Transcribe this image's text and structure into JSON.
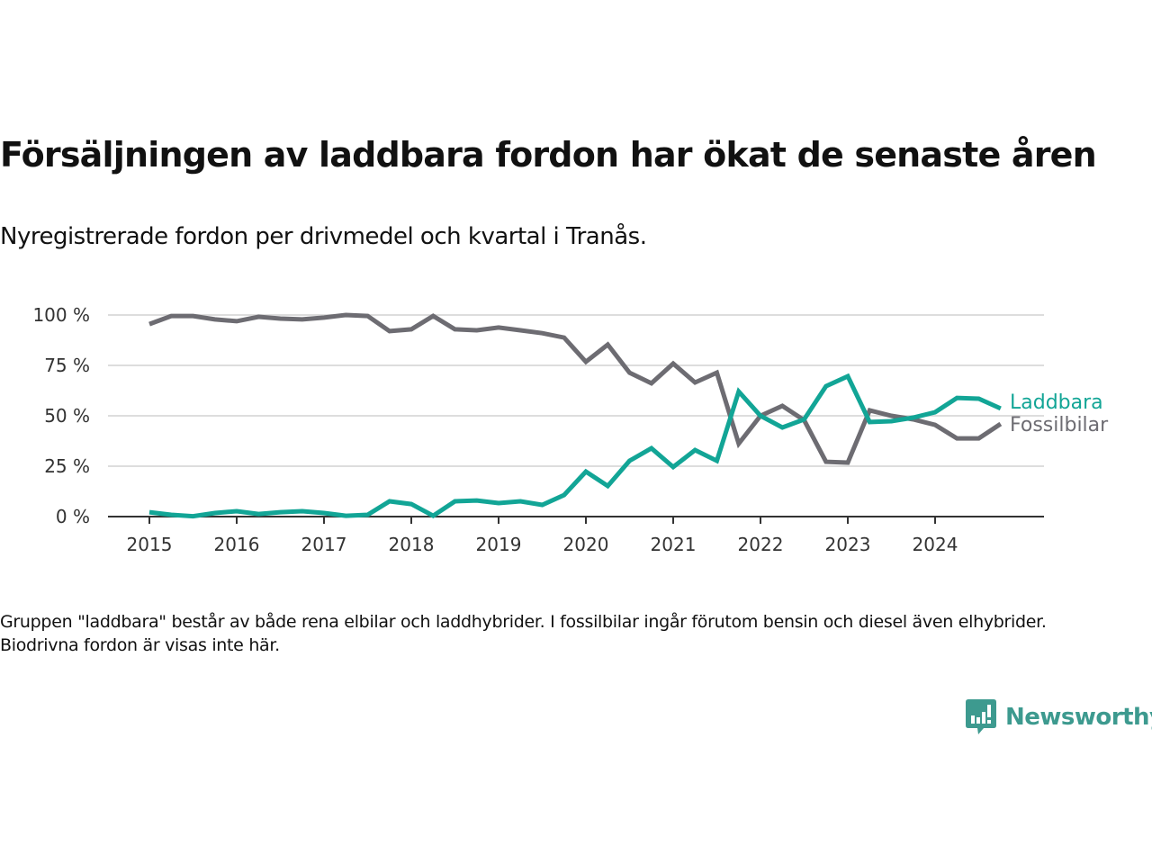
{
  "header": {
    "title": "Försäljningen av laddbara fordon har ökat de senaste åren",
    "subtitle": "Nyregistrerade fordon per drivmedel och kvartal i Tranås."
  },
  "footnote": "Gruppen \"laddbara\" består av både rena elbilar och laddhybrider. I fossilbilar ingår förutom bensin och diesel även elhybrider. Biodrivna fordon är visas inte här.",
  "brand": {
    "name": "Newsworthy",
    "color": "#3d9a8f"
  },
  "colors": {
    "laddbara": "#12a596",
    "fossil": "#6d6c72",
    "grid": "#dddddd",
    "axis": "#333333"
  },
  "chart_data": {
    "type": "line",
    "title": "Försäljningen av laddbara fordon har ökat de senaste åren",
    "subtitle": "Nyregistrerade fordon per drivmedel och kvartal i Tranås.",
    "xlabel": "",
    "ylabel": "",
    "ylim": [
      0,
      100
    ],
    "yticks": [
      0,
      25,
      50,
      75,
      100
    ],
    "ytick_labels": [
      "0 %",
      "25 %",
      "50 %",
      "75 %",
      "100 %"
    ],
    "xticks": [
      "2015",
      "2016",
      "2017",
      "2018",
      "2019",
      "2020",
      "2021",
      "2022",
      "2023",
      "2024"
    ],
    "x_unit": "quarter",
    "x_start": "2015 Q1",
    "x_end": "2024 Q4",
    "grid": true,
    "legend": "inline-right",
    "series": [
      {
        "name": "Laddbara",
        "color": "#12a596",
        "values": [
          2.2,
          0.9,
          0.2,
          1.8,
          2.7,
          1.3,
          2.2,
          2.7,
          1.8,
          0.4,
          0.9,
          7.6,
          6.2,
          0.4,
          7.6,
          8.0,
          6.7,
          7.6,
          5.8,
          10.7,
          22.3,
          15.2,
          27.7,
          33.9,
          24.6,
          33.0,
          27.7,
          62.0,
          50.0,
          44.2,
          48.2,
          64.7,
          69.6,
          46.9,
          47.3,
          49.1,
          51.8,
          58.9,
          58.5,
          53.6
        ]
      },
      {
        "name": "Fossilbilar",
        "color": "#6d6c72",
        "values": [
          95.5,
          99.5,
          99.5,
          97.8,
          96.9,
          99.1,
          98.2,
          97.8,
          98.7,
          100.0,
          99.5,
          92.0,
          92.9,
          99.5,
          92.9,
          92.4,
          93.8,
          92.4,
          91.0,
          88.8,
          76.8,
          85.3,
          71.4,
          66.1,
          75.9,
          66.5,
          71.4,
          36.2,
          50.0,
          54.9,
          47.8,
          27.2,
          26.8,
          52.7,
          50.0,
          48.2,
          45.5,
          38.8,
          38.8,
          46.0
        ]
      }
    ]
  }
}
